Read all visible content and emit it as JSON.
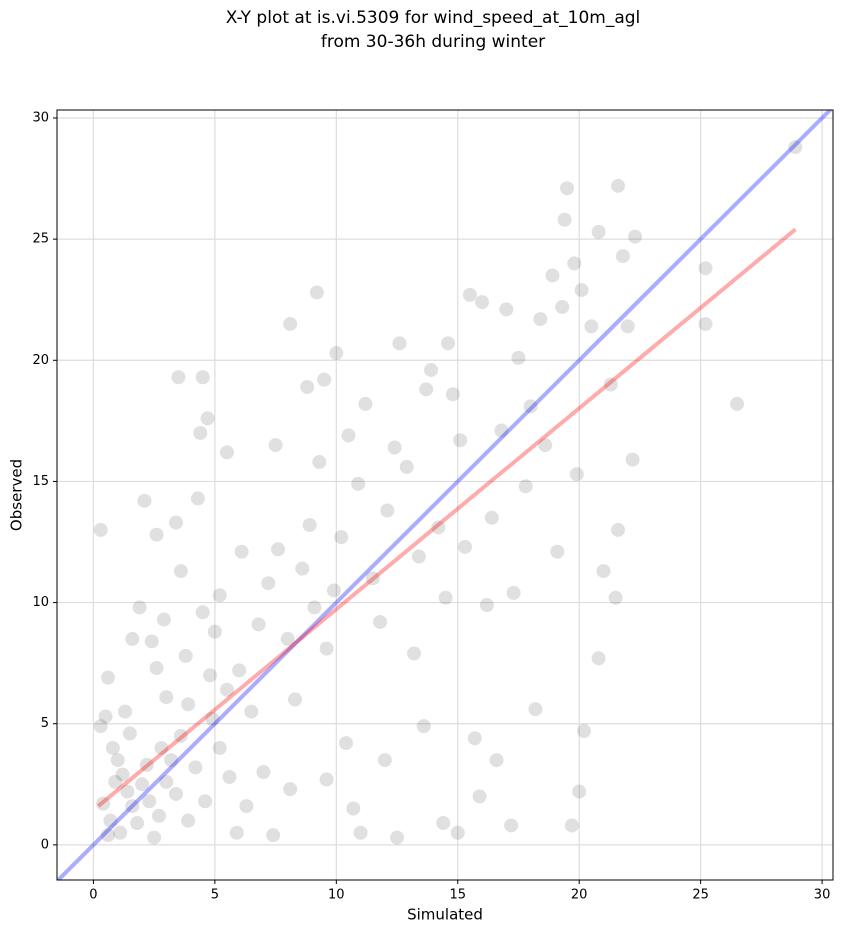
{
  "chart_data": {
    "type": "scatter",
    "title": [
      "X-Y plot at is.vi.5309 for wind_speed_at_10m_agl",
      "from 30-36h during winter"
    ],
    "x_label": "Simulated",
    "y_label": "Observed",
    "xlim": [
      -1.5,
      30.45
    ],
    "ylim": [
      -1.45,
      30.33
    ],
    "xticks": [
      0,
      5,
      10,
      15,
      20,
      25,
      30
    ],
    "yticks": [
      0,
      5,
      10,
      15,
      20,
      25,
      30
    ],
    "grid": true,
    "color": "#000000",
    "x": [
      0.3,
      2.1,
      2.6,
      3.5,
      4.5,
      4.4,
      4.7,
      4.3,
      5.5,
      8.1,
      9.2,
      10.0,
      9.5,
      8.8,
      7.5,
      3.4,
      3.6,
      1.9,
      1.6,
      2.4,
      0.6,
      0.3,
      0.5,
      0.8,
      1.0,
      1.2,
      1.4,
      1.6,
      0.7,
      1.1,
      1.8,
      2.0,
      2.3,
      2.5,
      2.7,
      3.0,
      3.2,
      3.4,
      3.6,
      2.8,
      2.2,
      1.5,
      1.3,
      0.9,
      0.4,
      0.6,
      3.9,
      4.2,
      4.6,
      4.9,
      5.2,
      5.5,
      5.0,
      4.5,
      3.8,
      3.0,
      2.6,
      6.0,
      6.5,
      6.8,
      7.2,
      7.0,
      6.3,
      5.9,
      7.6,
      8.0,
      8.3,
      8.6,
      8.9,
      9.3,
      9.1,
      9.6,
      9.9,
      10.2,
      10.4,
      10.7,
      10.5,
      10.9,
      11.2,
      11.5,
      11.8,
      12.1,
      12.4,
      12.6,
      12.9,
      12.0,
      12.5,
      13.2,
      13.4,
      13.7,
      13.9,
      14.2,
      14.5,
      14.6,
      14.8,
      15.1,
      15.3,
      15.5,
      15.7,
      15.0,
      16.0,
      16.2,
      16.4,
      16.8,
      17.0,
      17.3,
      17.5,
      17.8,
      18.0,
      18.2,
      18.4,
      18.6,
      18.9,
      19.1,
      19.3,
      19.5,
      19.4,
      19.8,
      19.9,
      20.1,
      20.0,
      20.2,
      20.5,
      20.8,
      21.0,
      21.3,
      21.6,
      21.8,
      22.0,
      22.3,
      22.2,
      21.6,
      21.5,
      25.2,
      25.2,
      26.5,
      28.9,
      15.9,
      16.6,
      17.2,
      14.4,
      13.6,
      11.0,
      9.6,
      8.1,
      7.4,
      5.2,
      6.1,
      3.9,
      4.8,
      5.6,
      2.9,
      19.7,
      20.8
    ],
    "y": [
      13.0,
      14.2,
      12.8,
      19.3,
      19.3,
      17.0,
      17.6,
      14.3,
      16.2,
      21.5,
      22.8,
      20.3,
      19.2,
      18.9,
      16.5,
      13.3,
      11.3,
      9.8,
      8.5,
      8.4,
      6.9,
      4.9,
      5.3,
      4.0,
      3.5,
      2.9,
      2.2,
      1.6,
      1.0,
      0.5,
      0.9,
      2.5,
      1.8,
      0.3,
      1.2,
      2.6,
      3.5,
      2.1,
      4.5,
      4.0,
      3.3,
      4.6,
      5.5,
      2.6,
      1.7,
      0.4,
      1.0,
      3.2,
      1.8,
      5.2,
      4.0,
      6.4,
      8.8,
      9.6,
      7.8,
      6.1,
      7.3,
      7.2,
      5.5,
      9.1,
      10.8,
      3.0,
      1.6,
      0.5,
      12.2,
      8.5,
      6.0,
      11.4,
      13.2,
      15.8,
      9.8,
      8.1,
      10.5,
      12.7,
      4.2,
      1.5,
      16.9,
      14.9,
      18.2,
      11.0,
      9.2,
      13.8,
      16.4,
      20.7,
      15.6,
      3.5,
      0.3,
      7.9,
      11.9,
      18.8,
      19.6,
      13.1,
      10.2,
      20.7,
      18.6,
      16.7,
      12.3,
      22.7,
      4.4,
      0.5,
      22.4,
      9.9,
      13.5,
      17.1,
      22.1,
      10.4,
      20.1,
      14.8,
      18.1,
      5.6,
      21.7,
      16.5,
      23.5,
      12.1,
      22.2,
      27.1,
      25.8,
      24.0,
      15.3,
      22.9,
      2.2,
      4.7,
      21.4,
      25.3,
      11.3,
      19.0,
      27.2,
      24.3,
      21.4,
      25.1,
      15.9,
      13.0,
      10.2,
      23.8,
      21.5,
      18.2,
      28.8,
      2.0,
      3.5,
      0.8,
      0.9,
      4.9,
      0.5,
      2.7,
      2.3,
      0.4,
      10.3,
      12.1,
      5.8,
      7.0,
      2.8,
      9.3,
      0.8,
      7.7
    ],
    "lines": [
      {
        "color": "#0000ff",
        "x": [
          -1.5,
          30.45
        ],
        "y": [
          -1.5,
          30.45
        ]
      },
      {
        "color": "#ff0000",
        "x": [
          0.2,
          28.9
        ],
        "y": [
          1.6,
          25.4
        ]
      }
    ]
  }
}
